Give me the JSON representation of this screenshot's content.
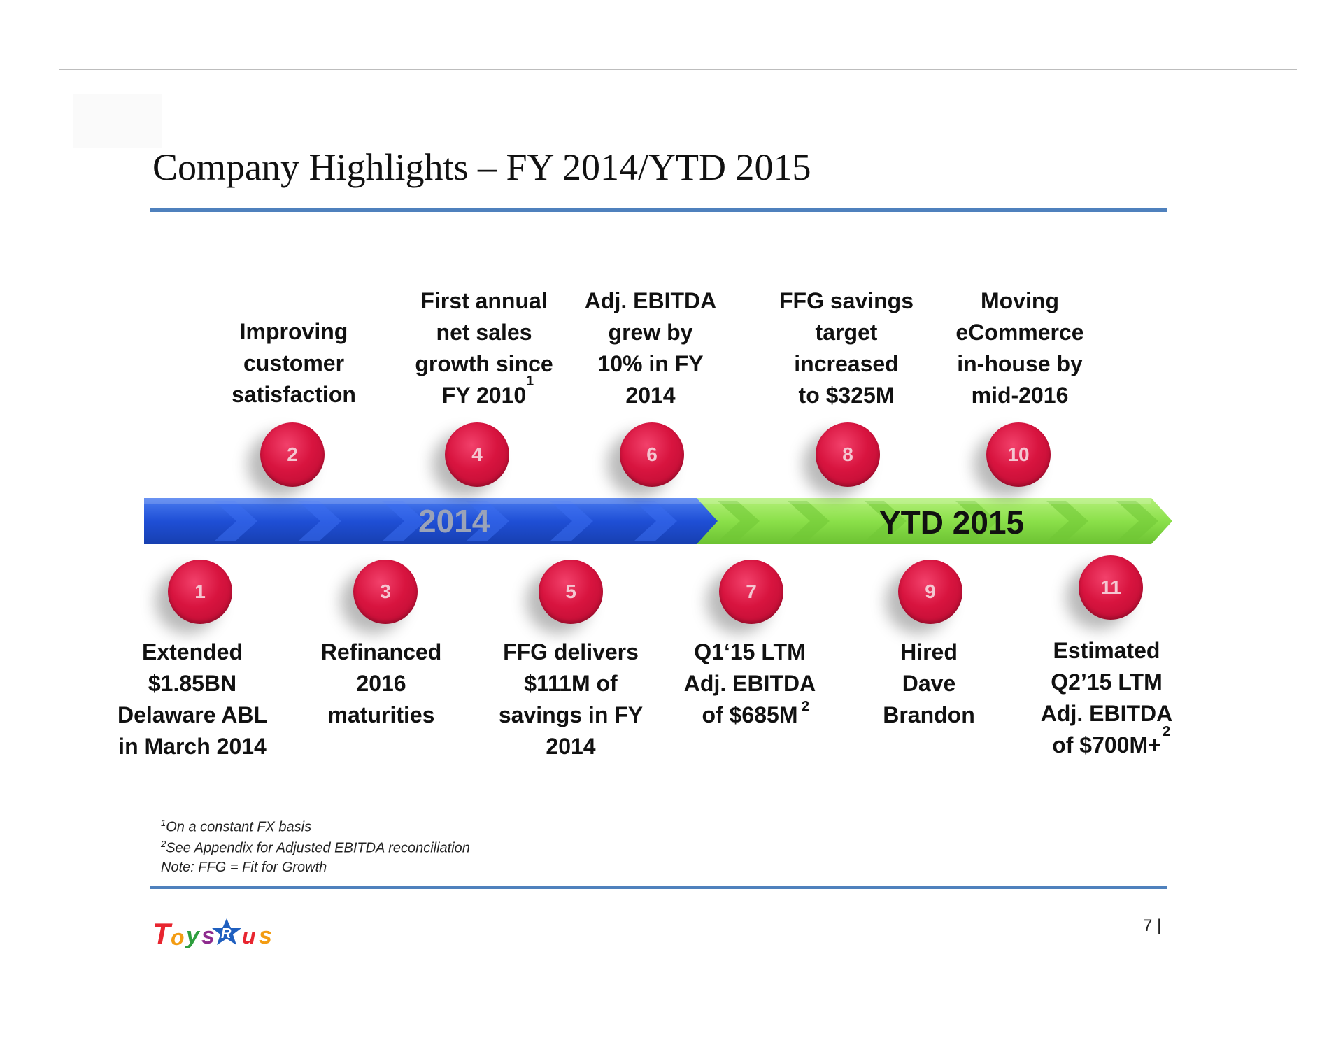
{
  "title": "Company Highlights – FY 2014/YTD 2015",
  "timeline": {
    "segment_2014": "2014",
    "segment_2015": "YTD 2015",
    "color_2014": "#2255d6",
    "color_2015": "#8be04a"
  },
  "milestones": [
    {
      "number": "1",
      "lines": [
        "Extended",
        "$1.85BN",
        "Delaware ABL",
        "in March 2014"
      ]
    },
    {
      "number": "2",
      "lines": [
        "Improving",
        "customer",
        "satisfaction"
      ]
    },
    {
      "number": "3",
      "lines": [
        "Refinanced",
        "2016",
        "maturities"
      ]
    },
    {
      "number": "4",
      "lines": [
        "First annual",
        "net sales",
        "growth since",
        "FY 2010"
      ],
      "sup": "1"
    },
    {
      "number": "5",
      "lines": [
        "FFG delivers",
        "$111M of",
        "savings in FY",
        "2014"
      ]
    },
    {
      "number": "6",
      "lines": [
        "Adj. EBITDA",
        "grew by",
        "10% in FY",
        "2014"
      ]
    },
    {
      "number": "7",
      "lines": [
        "Q1‘15 LTM",
        "Adj. EBITDA",
        "of $685M"
      ],
      "sup": "2"
    },
    {
      "number": "8",
      "lines": [
        "FFG savings",
        "target",
        "increased",
        "to $325M"
      ]
    },
    {
      "number": "9",
      "lines": [
        "Hired",
        "Dave",
        "Brandon"
      ]
    },
    {
      "number": "10",
      "lines": [
        "Moving",
        "eCommerce",
        "in-house by",
        "mid-2016"
      ]
    },
    {
      "number": "11",
      "lines": [
        "Estimated",
        "Q2’15 LTM",
        "Adj. EBITDA",
        "of $700M+"
      ],
      "sup": "2"
    }
  ],
  "footnotes": [
    {
      "marker": "1",
      "text": "On a constant FX basis"
    },
    {
      "marker": "2",
      "text": "See Appendix for Adjusted EBITDA reconciliation"
    },
    {
      "marker": "",
      "text": "Note: FFG = Fit for Growth"
    }
  ],
  "logo": {
    "text": "TOYS R US",
    "icon": "toysrus-logo"
  },
  "page_number": "7 |",
  "colors": {
    "accent_rule": "#4f81bd",
    "marker": "#d8143f"
  }
}
